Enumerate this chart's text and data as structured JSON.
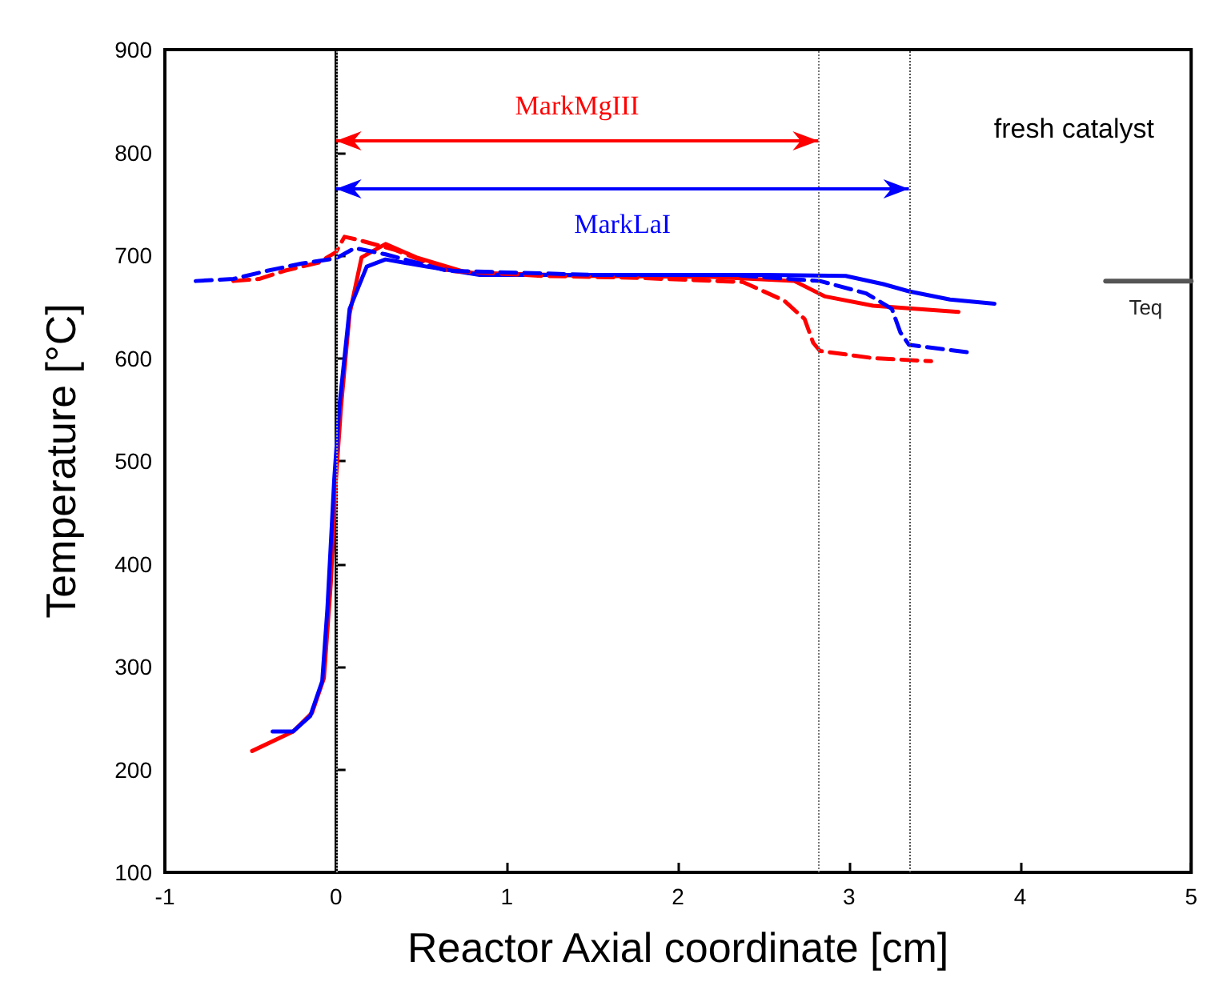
{
  "chart_data": {
    "type": "line",
    "xlabel": "Reactor Axial coordinate [cm]",
    "ylabel": "Temperature [°C]",
    "xlim": [
      -1,
      5
    ],
    "ylim": [
      100,
      900
    ],
    "xticks": [
      -1,
      0,
      1,
      2,
      3,
      4,
      5
    ],
    "yticks": [
      100,
      200,
      300,
      400,
      500,
      600,
      700,
      800,
      900
    ],
    "grid": false,
    "legend": false,
    "marker": "none",
    "series": [
      {
        "color": "#ff0000",
        "line_style": "solid",
        "x": [
          -0.49,
          -0.25,
          -0.14,
          -0.07,
          -0.03,
          0.0,
          0.03,
          0.08,
          0.15,
          0.29,
          0.47,
          0.77,
          1.5,
          2.2,
          2.68,
          2.86,
          3.14,
          3.64
        ],
        "values": [
          218,
          237,
          255,
          289,
          381,
          482,
          553,
          643,
          698,
          711,
          698,
          683,
          680,
          679,
          675,
          660,
          651,
          645
        ]
      },
      {
        "color": "#0000ff",
        "line_style": "solid",
        "x": [
          -0.37,
          -0.25,
          -0.15,
          -0.08,
          -0.05,
          -0.01,
          0.02,
          0.08,
          0.18,
          0.29,
          0.53,
          0.84,
          1.5,
          2.5,
          2.98,
          3.2,
          3.35,
          3.59,
          3.85
        ],
        "values": [
          237,
          237,
          252,
          286,
          356,
          482,
          553,
          648,
          689,
          696,
          689,
          681,
          681,
          681,
          680,
          672,
          665,
          657,
          653
        ]
      },
      {
        "color": "#ff0000",
        "line_style": "dashed",
        "x": [
          -0.6,
          -0.45,
          -0.3,
          -0.1,
          0.0,
          0.05,
          0.13,
          0.35,
          0.65,
          1.2,
          1.77,
          2.38,
          2.62,
          2.74,
          2.79,
          2.83,
          3.14,
          3.48
        ],
        "values": [
          675,
          677,
          685,
          693,
          703,
          718,
          715,
          705,
          685,
          680,
          678,
          674,
          656,
          638,
          615,
          607,
          600,
          597
        ]
      },
      {
        "color": "#0000ff",
        "line_style": "dashed",
        "x": [
          -0.82,
          -0.6,
          -0.4,
          -0.2,
          0.0,
          0.11,
          0.29,
          0.65,
          1.5,
          2.3,
          2.83,
          3.1,
          3.25,
          3.3,
          3.35,
          3.73
        ],
        "values": [
          675,
          677,
          685,
          692,
          697,
          707,
          701,
          685,
          681,
          681,
          675,
          663,
          648,
          625,
          613,
          605
        ]
      },
      {
        "name": "Teq",
        "color": "#555555",
        "line_style": "solid",
        "x": [
          4.5,
          5
        ],
        "values": [
          675,
          675
        ]
      }
    ],
    "ref_lines": [
      {
        "axis": "x",
        "value": 0,
        "color": "#999999",
        "line_style": "dotted"
      },
      {
        "axis": "x",
        "value": 2.82,
        "color": "#777777",
        "line_style": "dotted"
      },
      {
        "axis": "x",
        "value": 3.35,
        "color": "#555555",
        "line_style": "dotted"
      }
    ],
    "annotations": [
      "MarkMgIII",
      "MarkLaI",
      "fresh catalyst"
    ]
  }
}
